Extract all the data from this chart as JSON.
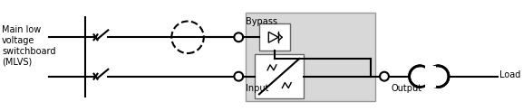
{
  "bg_color": "#ffffff",
  "gray_box_color": "#d8d8d8",
  "line_color": "#000000",
  "text_color": "#000000",
  "line_width": 1.5,
  "labels": {
    "mlvs": "Main low\nvoltage\nswitchboard\n(MLVS)",
    "bypass": "Bypass",
    "input": "Input",
    "output": "Output",
    "load": "Load"
  },
  "font_size": 7
}
